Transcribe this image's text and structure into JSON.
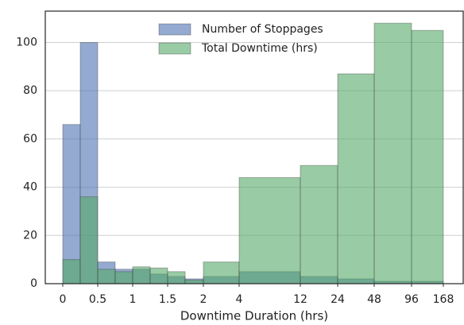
{
  "chart_data": {
    "type": "histogram",
    "xlabel": "Downtime Duration (hrs)",
    "bins": [
      0,
      0.25,
      0.5,
      0.75,
      1,
      1.25,
      1.5,
      1.75,
      2,
      4,
      12,
      24,
      48,
      96,
      168
    ],
    "series": [
      {
        "name": "Number of Stoppages",
        "color": "#4c72b0",
        "values": [
          66,
          100,
          9,
          6,
          6,
          4,
          3,
          2,
          3,
          5,
          3,
          2,
          1,
          1
        ]
      },
      {
        "name": "Total Downtime (hrs)",
        "color": "#55a868",
        "values": [
          10,
          36,
          6,
          5,
          7,
          6.5,
          5,
          1.5,
          9,
          44,
          49,
          87,
          108,
          105
        ]
      }
    ],
    "ylim": [
      0,
      113
    ],
    "yticks": [
      0,
      20,
      40,
      60,
      80,
      100
    ],
    "xticks": [
      0,
      0.5,
      1,
      1.5,
      2,
      4,
      12,
      24,
      48,
      96,
      168
    ],
    "grid": true
  }
}
